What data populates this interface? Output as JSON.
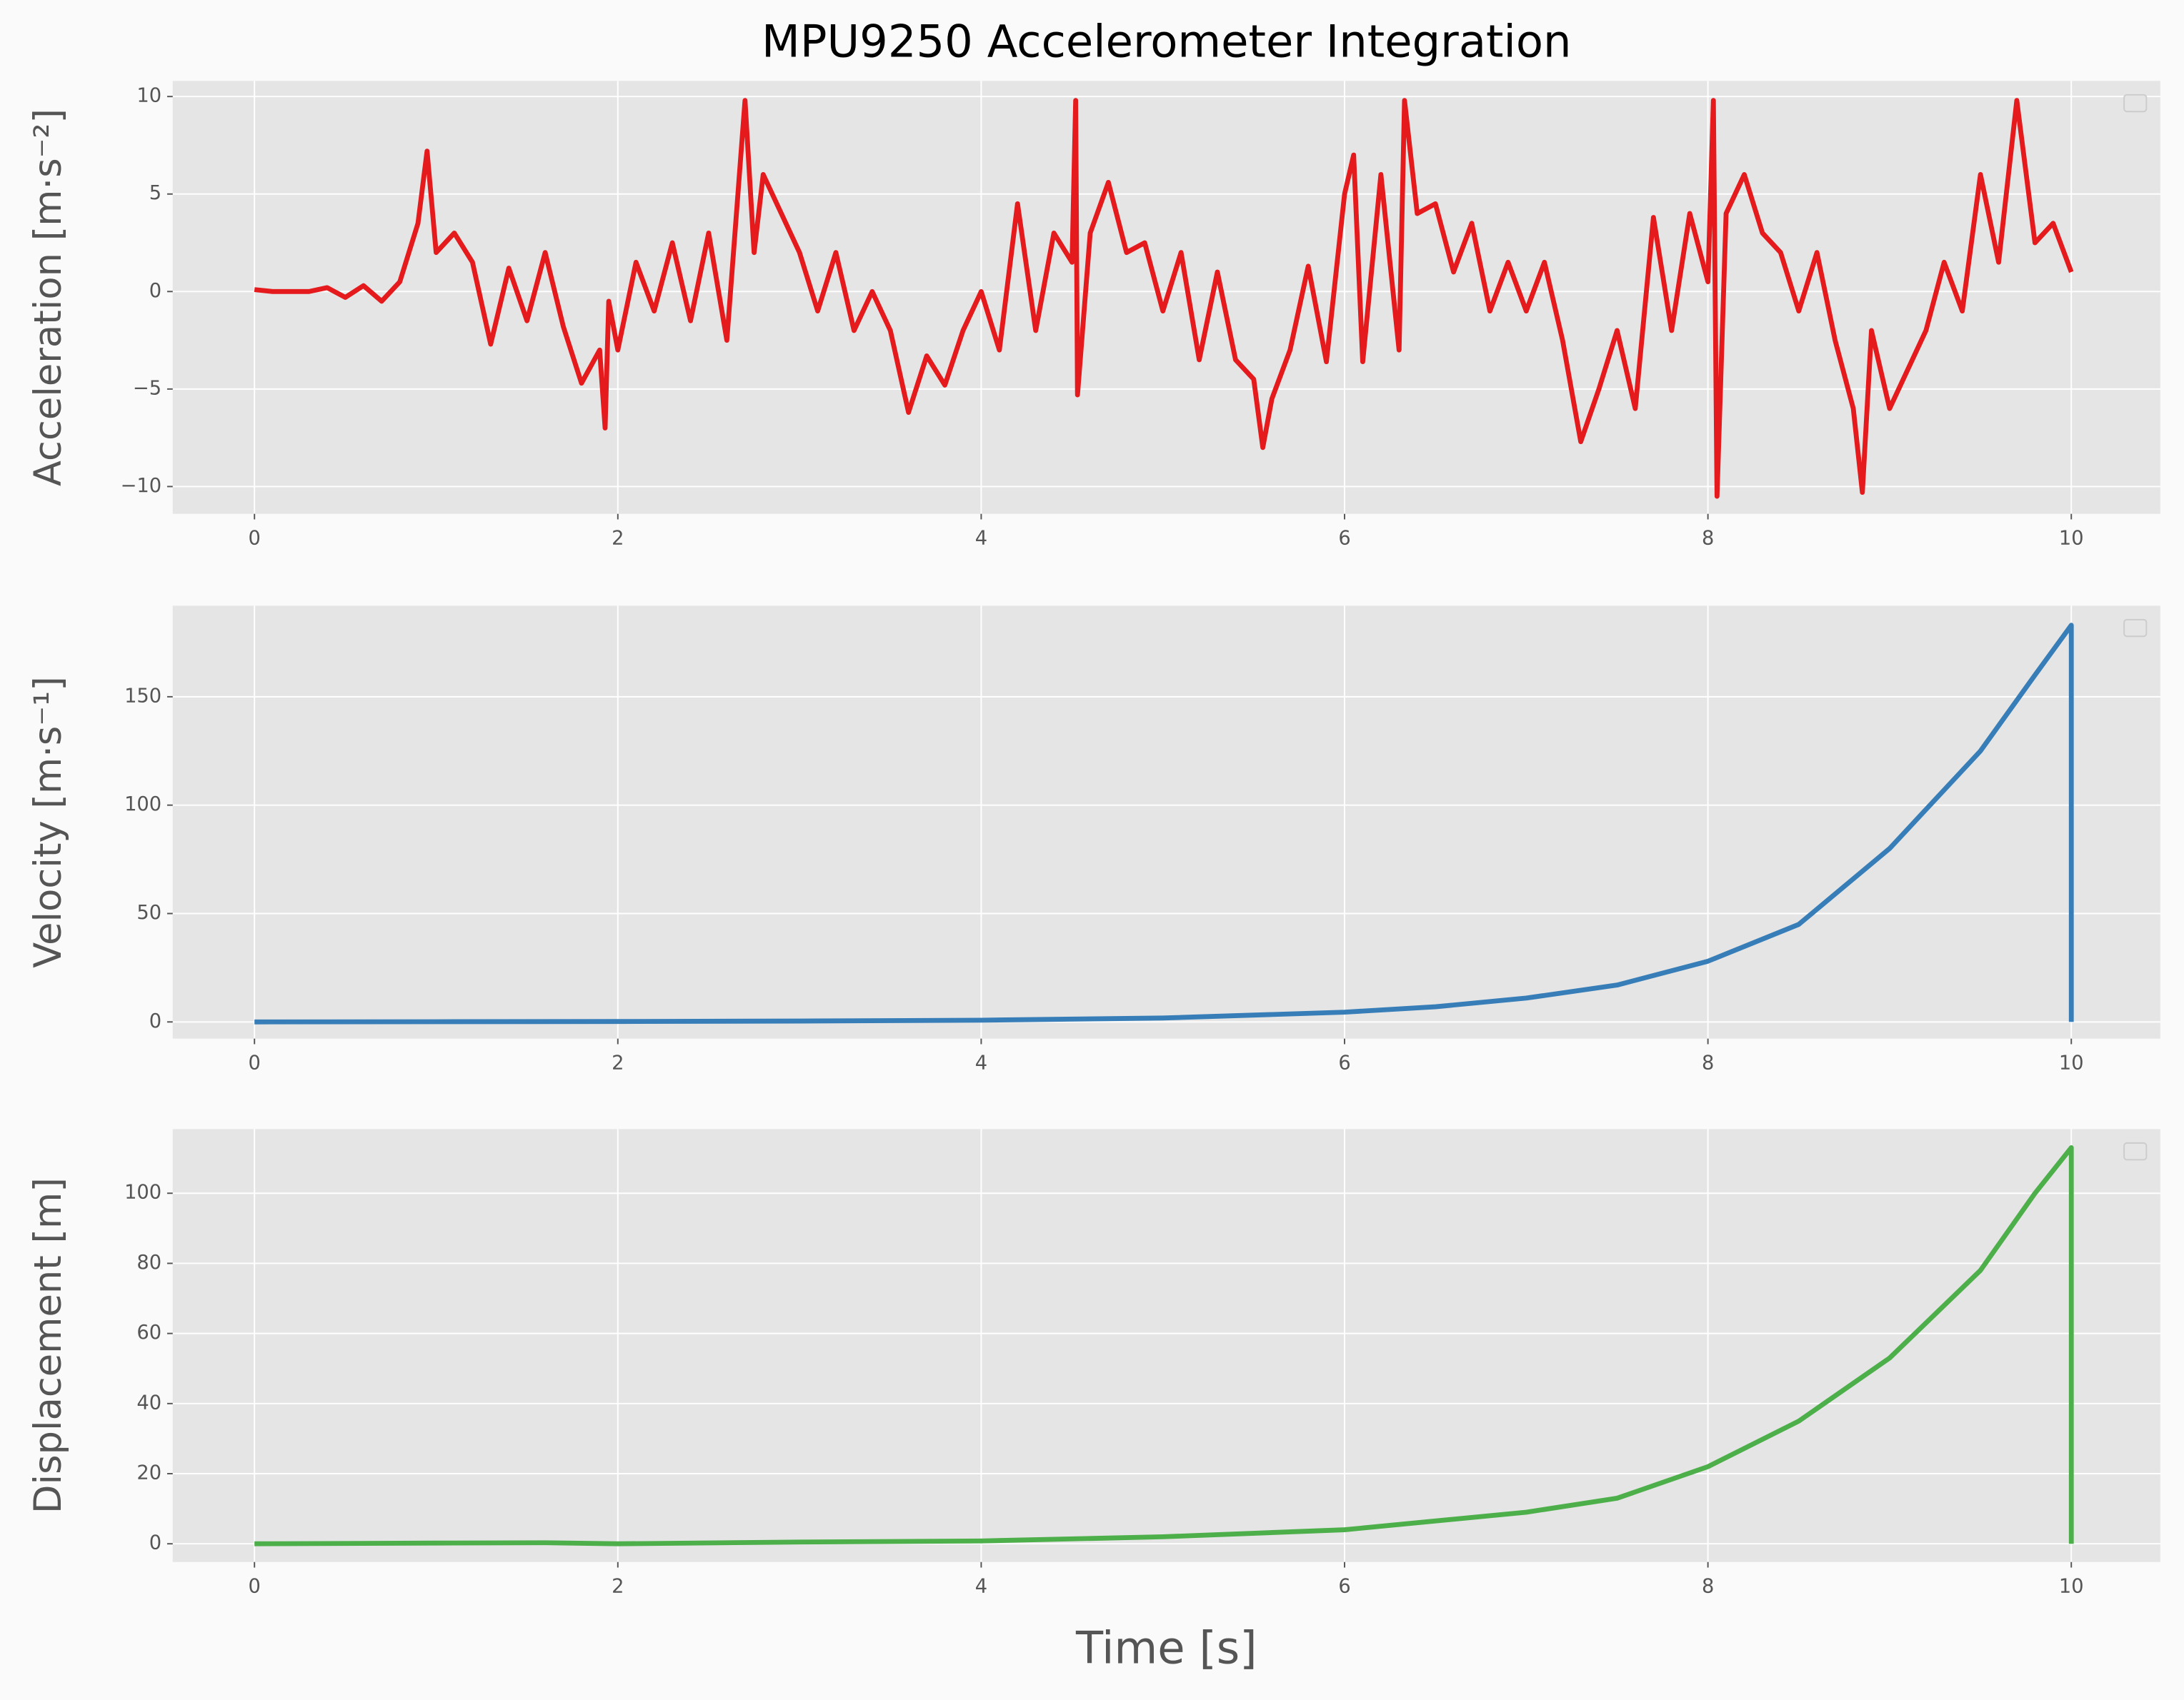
{
  "chart_data": [
    {
      "type": "line",
      "title": "MPU9250 Accelerometer Integration",
      "ylabel": "Acceleration [m·s⁻²]",
      "color": "#e41a1c",
      "grid": true,
      "xlim": [
        -0.45,
        10.49
      ],
      "xticks": [
        0,
        2,
        4,
        6,
        8,
        10
      ],
      "ylim": [
        -11.4,
        10.8
      ],
      "yticks": [
        {
          "value": -10,
          "label": "−10"
        },
        {
          "value": -5,
          "label": "−5"
        },
        0,
        5,
        10
      ],
      "x": [
        0,
        0.1,
        0.2,
        0.3,
        0.4,
        0.5,
        0.6,
        0.7,
        0.8,
        0.9,
        0.95,
        1.0,
        1.1,
        1.2,
        1.3,
        1.4,
        1.5,
        1.6,
        1.7,
        1.8,
        1.9,
        1.93,
        1.95,
        2.0,
        2.1,
        2.2,
        2.3,
        2.4,
        2.5,
        2.6,
        2.7,
        2.75,
        2.8,
        2.9,
        3.0,
        3.1,
        3.2,
        3.3,
        3.4,
        3.5,
        3.6,
        3.7,
        3.8,
        3.9,
        4.0,
        4.1,
        4.2,
        4.3,
        4.4,
        4.5,
        4.52,
        4.53,
        4.6,
        4.7,
        4.8,
        4.9,
        5.0,
        5.1,
        5.2,
        5.3,
        5.4,
        5.5,
        5.55,
        5.6,
        5.7,
        5.8,
        5.9,
        6.0,
        6.05,
        6.1,
        6.2,
        6.3,
        6.33,
        6.4,
        6.5,
        6.6,
        6.7,
        6.8,
        6.9,
        7.0,
        7.1,
        7.2,
        7.3,
        7.4,
        7.5,
        7.6,
        7.7,
        7.8,
        7.9,
        8.0,
        8.03,
        8.05,
        8.1,
        8.2,
        8.3,
        8.4,
        8.5,
        8.6,
        8.7,
        8.8,
        8.85,
        8.9,
        9.0,
        9.1,
        9.2,
        9.3,
        9.4,
        9.5,
        9.6,
        9.7,
        9.8,
        9.9,
        10.0
      ],
      "values": [
        0.1,
        0,
        0,
        0,
        0.2,
        -0.3,
        0.3,
        -0.5,
        0.5,
        3.5,
        7.2,
        2,
        3,
        1.5,
        -2.7,
        1.2,
        -1.5,
        2,
        -1.8,
        -4.7,
        -3,
        -7,
        -0.5,
        -3,
        1.5,
        -1,
        2.5,
        -1.5,
        3,
        -2.5,
        9.8,
        2,
        6,
        4,
        2,
        -1,
        2,
        -2,
        0,
        -2,
        -6.2,
        -3.3,
        -4.8,
        -2,
        0,
        -3,
        4.5,
        -2,
        3,
        1.5,
        9.8,
        -5.3,
        3,
        5.6,
        2,
        2.5,
        -1,
        2,
        -3.5,
        1,
        -3.5,
        -4.5,
        -8,
        -5.5,
        -3,
        1.3,
        -3.6,
        5,
        7,
        -3.6,
        6,
        -3,
        9.8,
        4,
        4.5,
        1,
        3.5,
        -1,
        1.5,
        -1,
        1.5,
        -2.5,
        -7.7,
        -5,
        -2,
        -6,
        3.8,
        -2,
        4,
        0.5,
        9.8,
        -10.5,
        4,
        6,
        3,
        2,
        -1,
        2,
        -2.5,
        -6,
        -10.3,
        -2,
        -6,
        -4,
        -2,
        1.5,
        -1,
        6,
        1.5,
        9.8,
        2.5,
        3.5,
        1
      ]
    },
    {
      "type": "line",
      "ylabel": "Velocity [m·s⁻¹]",
      "color": "#377eb8",
      "grid": true,
      "xlim": [
        -0.45,
        10.49
      ],
      "xticks": [
        0,
        2,
        4,
        6,
        8,
        10
      ],
      "ylim": [
        -7.7,
        192
      ],
      "yticks": [
        0,
        50,
        100,
        150
      ],
      "x": [
        0,
        1,
        2,
        3,
        4,
        5,
        6,
        6.5,
        7,
        7.5,
        8,
        8.5,
        9,
        9.5,
        9.8,
        10,
        10
      ],
      "values": [
        0,
        0.1,
        0.2,
        0.4,
        0.8,
        1.8,
        4.5,
        7,
        11,
        17,
        28,
        45,
        80,
        125,
        160,
        183,
        0
      ]
    },
    {
      "type": "line",
      "ylabel": "Displacement [m]",
      "xlabel": "Time [s]",
      "color": "#4daf4a",
      "grid": true,
      "xlim": [
        -0.45,
        10.49
      ],
      "xticks": [
        0,
        2,
        4,
        6,
        8,
        10
      ],
      "ylim": [
        -5.2,
        118.3
      ],
      "yticks": [
        0,
        20,
        40,
        60,
        80,
        100
      ],
      "x": [
        0,
        1,
        1.6,
        2,
        3,
        4,
        5,
        6,
        7,
        7.5,
        8,
        8.5,
        9,
        9.5,
        9.8,
        10,
        10
      ],
      "values": [
        0,
        0.2,
        0.3,
        0,
        0.5,
        0.8,
        2,
        4,
        9,
        13,
        22,
        35,
        53,
        78,
        100,
        113,
        0
      ]
    }
  ]
}
